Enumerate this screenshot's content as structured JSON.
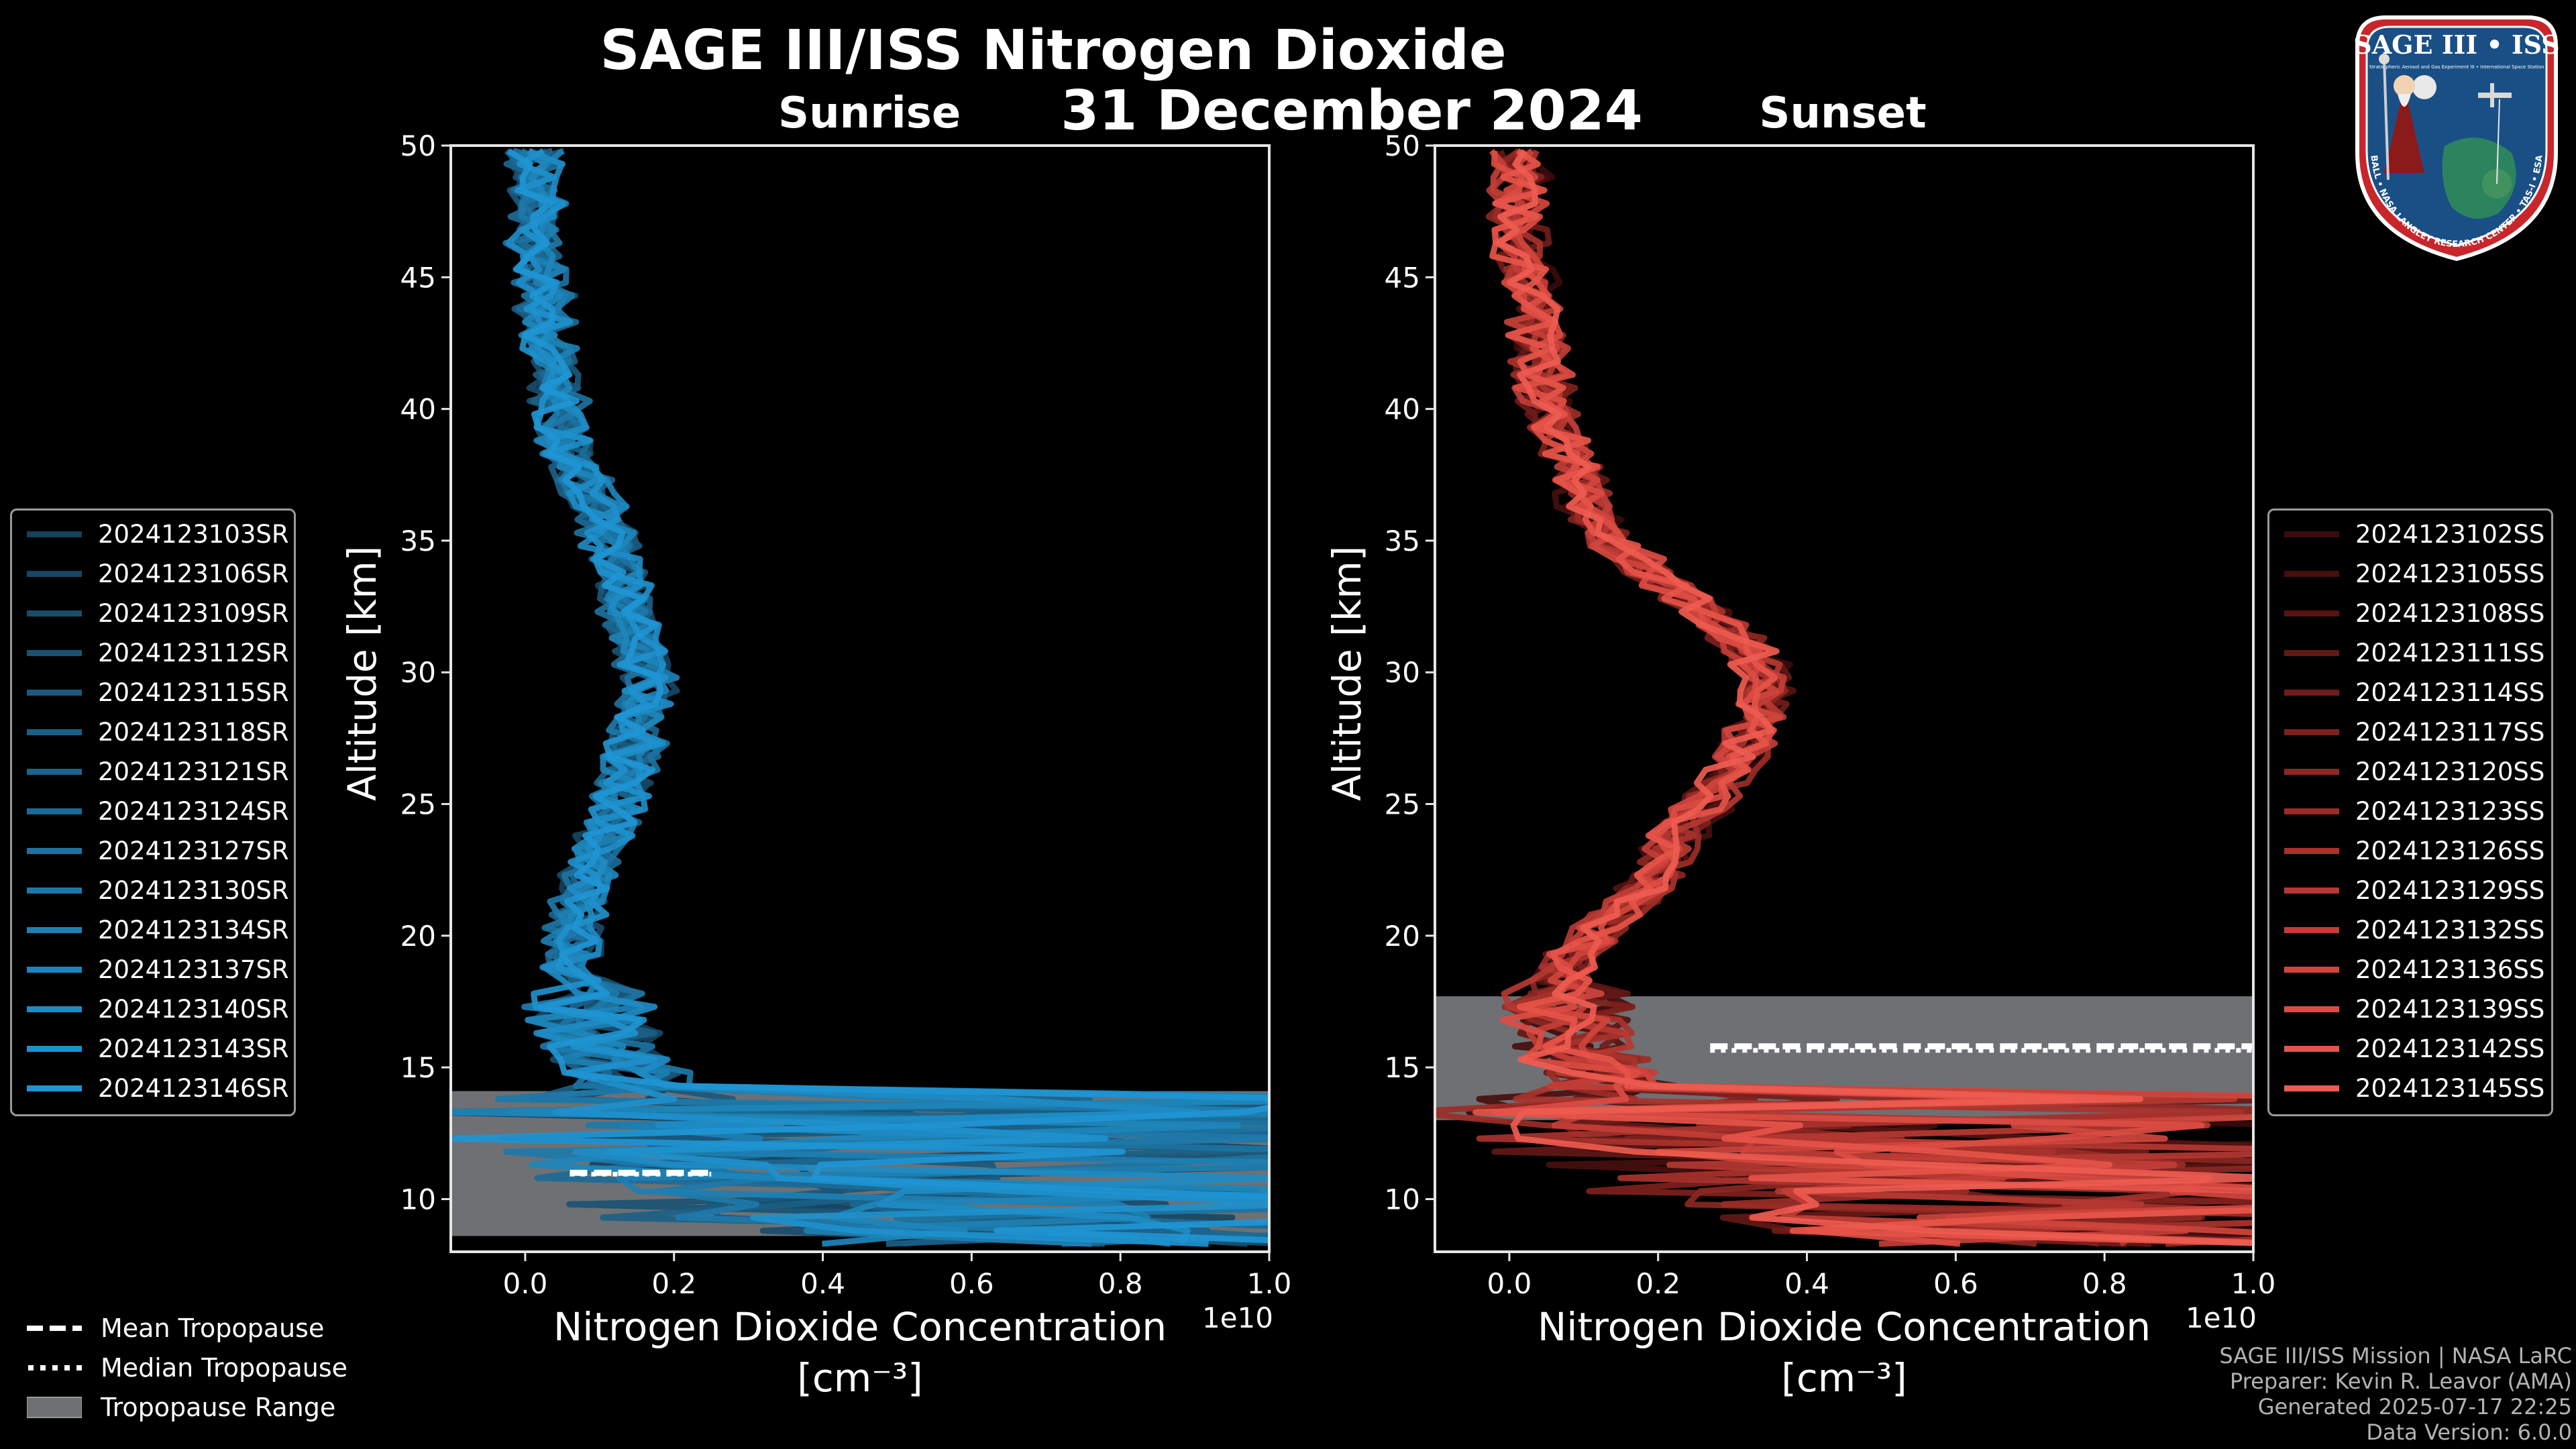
{
  "title": "SAGE III/ISS Nitrogen Dioxide",
  "date": "31 December 2024",
  "panels": {
    "sunrise": {
      "title": "Sunrise",
      "ylabel": "Altitude [km]",
      "xlabel_line1": "Nitrogen Dioxide Concentration",
      "xlabel_line2": "[cm⁻³]",
      "offset_text": "1e10",
      "color": "#1f93d6",
      "legend": [
        "2024123103SR",
        "2024123106SR",
        "2024123109SR",
        "2024123112SR",
        "2024123115SR",
        "2024123118SR",
        "2024123121SR",
        "2024123124SR",
        "2024123127SR",
        "2024123130SR",
        "2024123134SR",
        "2024123137SR",
        "2024123140SR",
        "2024123143SR",
        "2024123146SR"
      ],
      "legend_colors": [
        "#16405c",
        "#174663",
        "#184c6b",
        "#195273",
        "#1a587c",
        "#1b5f85",
        "#1b658e",
        "#1b6b97",
        "#1c72a0",
        "#1d78a9",
        "#1d7fb2",
        "#1d85bb",
        "#1e8bc4",
        "#1e90cc",
        "#1f95d4"
      ],
      "tropopause": {
        "min_km": 8.6,
        "max_km": 14.1,
        "mean_km": 11.0,
        "median_km": 11.1
      }
    },
    "sunset": {
      "title": "Sunset",
      "ylabel": "Altitude [km]",
      "xlabel_line1": "Nitrogen Dioxide Concentration",
      "xlabel_line2": "[cm⁻³]",
      "offset_text": "1e10",
      "color": "#e8574a",
      "legend": [
        "2024123102SS",
        "2024123105SS",
        "2024123108SS",
        "2024123111SS",
        "2024123114SS",
        "2024123117SS",
        "2024123120SS",
        "2024123123SS",
        "2024123126SS",
        "2024123129SS",
        "2024123132SS",
        "2024123136SS",
        "2024123139SS",
        "2024123142SS",
        "2024123145SS"
      ],
      "legend_colors": [
        "#3a0b0b",
        "#470f0f",
        "#551312",
        "#621816",
        "#701c19",
        "#7e211d",
        "#8c2722",
        "#9a2c27",
        "#a8322c",
        "#b53832",
        "#c23e37",
        "#cf453d",
        "#db4c43",
        "#e65449",
        "#ee5b50"
      ],
      "tropopause": {
        "min_km": 13.0,
        "max_km": 17.7,
        "mean_km": 15.8,
        "median_km": 15.8
      }
    }
  },
  "chart_data": [
    {
      "type": "line",
      "title": "Sunrise",
      "xlabel": "Nitrogen Dioxide Concentration [cm⁻³]",
      "ylabel": "Altitude [km]",
      "x_scale_offset": "1e10",
      "xlim": [
        -0.1,
        1.0
      ],
      "ylim": [
        8,
        50
      ],
      "xticks": [
        0.0,
        0.2,
        0.4,
        0.6,
        0.8,
        1.0
      ],
      "xtick_labels": [
        "0.0",
        "0.2",
        "0.4",
        "0.6",
        "0.8",
        "1.0"
      ],
      "yticks": [
        10,
        15,
        20,
        25,
        30,
        35,
        40,
        45,
        50
      ],
      "ytick_labels": [
        "10",
        "15",
        "20",
        "25",
        "30",
        "35",
        "40",
        "45",
        "50"
      ],
      "mean_profile": {
        "altitude_km": [
          8.5,
          9,
          10,
          11,
          12,
          13,
          14,
          15,
          16,
          17,
          18,
          19,
          20,
          21,
          22,
          23,
          24,
          25,
          26,
          27,
          28,
          29,
          30,
          31,
          32,
          33,
          34,
          35,
          36,
          37,
          38,
          39,
          40,
          41,
          42,
          43,
          44,
          45,
          46,
          47,
          48,
          49,
          50
        ],
        "no2_1e10": [
          0.55,
          0.45,
          0.35,
          0.25,
          0.2,
          0.17,
          0.13,
          0.1,
          0.08,
          0.06,
          0.05,
          0.05,
          0.05,
          0.06,
          0.07,
          0.08,
          0.1,
          0.11,
          0.12,
          0.13,
          0.14,
          0.15,
          0.15,
          0.14,
          0.13,
          0.12,
          0.11,
          0.1,
          0.09,
          0.07,
          0.05,
          0.04,
          0.03,
          0.03,
          0.02,
          0.02,
          0.01,
          0.01,
          0.0,
          0.0,
          0.0,
          0.0,
          0.0
        ]
      },
      "series_names": [
        "2024123103SR",
        "2024123106SR",
        "2024123109SR",
        "2024123112SR",
        "2024123115SR",
        "2024123118SR",
        "2024123121SR",
        "2024123124SR",
        "2024123127SR",
        "2024123130SR",
        "2024123134SR",
        "2024123137SR",
        "2024123140SR",
        "2024123143SR",
        "2024123146SR"
      ],
      "tropopause_range_km": [
        8.6,
        14.1
      ],
      "mean_tropopause_km": 11.0,
      "median_tropopause_km": 11.1
    },
    {
      "type": "line",
      "title": "Sunset",
      "xlabel": "Nitrogen Dioxide Concentration [cm⁻³]",
      "ylabel": "Altitude [km]",
      "x_scale_offset": "1e10",
      "xlim": [
        -0.1,
        1.0
      ],
      "ylim": [
        8,
        50
      ],
      "xticks": [
        0.0,
        0.2,
        0.4,
        0.6,
        0.8,
        1.0
      ],
      "xtick_labels": [
        "0.0",
        "0.2",
        "0.4",
        "0.6",
        "0.8",
        "1.0"
      ],
      "yticks": [
        10,
        15,
        20,
        25,
        30,
        35,
        40,
        45,
        50
      ],
      "ytick_labels": [
        "10",
        "15",
        "20",
        "25",
        "30",
        "35",
        "40",
        "45",
        "50"
      ],
      "mean_profile": {
        "altitude_km": [
          8.5,
          9,
          10,
          11,
          12,
          13,
          14,
          15,
          16,
          17,
          18,
          19,
          20,
          21,
          22,
          23,
          24,
          25,
          26,
          27,
          28,
          29,
          30,
          31,
          32,
          33,
          34,
          35,
          36,
          37,
          38,
          39,
          40,
          41,
          42,
          43,
          44,
          45,
          46,
          47,
          48,
          49,
          50
        ],
        "no2_1e10": [
          0.6,
          0.5,
          0.4,
          0.3,
          0.22,
          0.16,
          0.12,
          0.08,
          0.06,
          0.05,
          0.05,
          0.07,
          0.1,
          0.14,
          0.18,
          0.2,
          0.22,
          0.25,
          0.28,
          0.3,
          0.32,
          0.33,
          0.33,
          0.3,
          0.27,
          0.22,
          0.17,
          0.12,
          0.1,
          0.08,
          0.07,
          0.05,
          0.04,
          0.03,
          0.03,
          0.02,
          0.02,
          0.01,
          0.0,
          0.0,
          0.0,
          0.0,
          0.0
        ]
      },
      "series_names": [
        "2024123102SS",
        "2024123105SS",
        "2024123108SS",
        "2024123111SS",
        "2024123114SS",
        "2024123117SS",
        "2024123120SS",
        "2024123123SS",
        "2024123126SS",
        "2024123129SS",
        "2024123132SS",
        "2024123136SS",
        "2024123139SS",
        "2024123142SS",
        "2024123145SS"
      ],
      "tropopause_range_km": [
        13.0,
        17.7
      ],
      "mean_tropopause_km": 15.8,
      "median_tropopause_km": 15.8
    }
  ],
  "bottom_legend": {
    "mean": "Mean Tropopause",
    "median": "Median Tropopause",
    "range": "Tropopause Range"
  },
  "credits": {
    "line1": "SAGE III/ISS Mission | NASA LaRC",
    "line2": "Preparer: Kevin R. Leavor (AMA)",
    "line3": "Generated 2025-07-17 22:25",
    "line4": "Data Version: 6.0.0"
  },
  "logo": {
    "name": "SAGE III • ISS",
    "ring_text": "BALL • NASA LANGLEY RESEARCH CENTER • TAS-I • ESA",
    "subtitle": "Stratospheric Aerosol and Gas Experiment III • International Space Station"
  }
}
